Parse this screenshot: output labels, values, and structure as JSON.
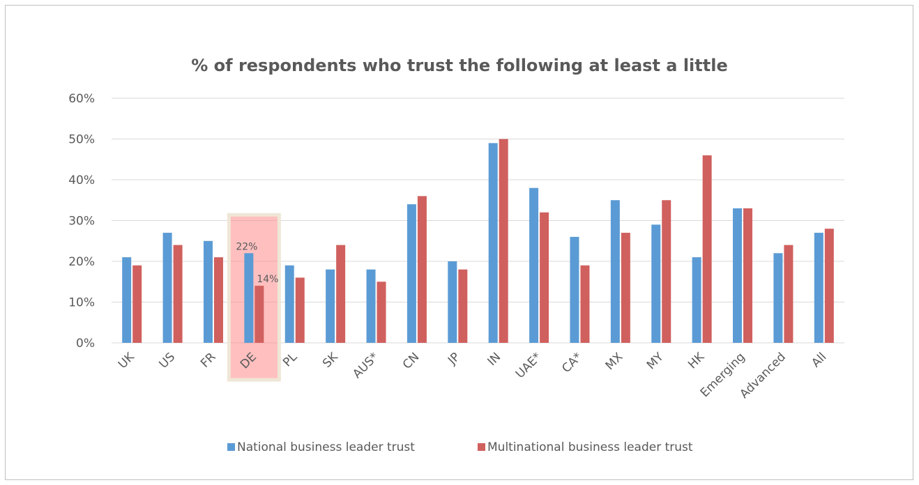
{
  "chart_data": {
    "type": "bar",
    "title": "% of respondents who trust the following at least a little",
    "xlabel": "",
    "ylabel": "",
    "ylim": [
      0,
      0.6
    ],
    "yticks": [
      "0%",
      "10%",
      "20%",
      "30%",
      "40%",
      "50%",
      "60%"
    ],
    "grid": true,
    "legend_position": "bottom",
    "categories": [
      "UK",
      "US",
      "FR",
      "DE",
      "PL",
      "SK",
      "AUS*",
      "CN",
      "JP",
      "IN",
      "UAE*",
      "CA*",
      "MX",
      "MY",
      "HK",
      "Emerging",
      "Advanced",
      "All"
    ],
    "series": [
      {
        "name": "National business leader trust",
        "color": "#5b9bd5",
        "values": [
          0.21,
          0.27,
          0.25,
          0.22,
          0.19,
          0.18,
          0.18,
          0.34,
          0.2,
          0.49,
          0.38,
          0.26,
          0.35,
          0.29,
          0.21,
          0.33,
          0.22,
          0.27
        ]
      },
      {
        "name": "Multinational business leader trust",
        "color": "#d0605e",
        "values": [
          0.19,
          0.24,
          0.21,
          0.14,
          0.16,
          0.24,
          0.15,
          0.36,
          0.18,
          0.5,
          0.32,
          0.19,
          0.27,
          0.35,
          0.46,
          0.33,
          0.24,
          0.28
        ]
      }
    ],
    "highlight": {
      "category": "DE",
      "labels": [
        "22%",
        "14%"
      ]
    }
  }
}
